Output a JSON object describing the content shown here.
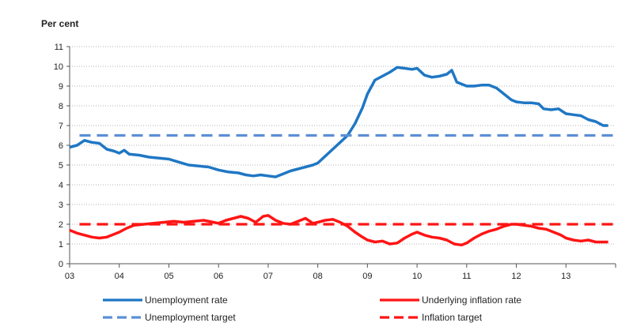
{
  "chart_data": {
    "type": "line",
    "ylabel": "Per cent",
    "ylim": [
      0,
      11
    ],
    "y_ticks": [
      0,
      1,
      2,
      3,
      4,
      5,
      6,
      7,
      8,
      9,
      10,
      11
    ],
    "xlim": [
      2003,
      2014
    ],
    "x_tick_labels": [
      "03",
      "04",
      "05",
      "06",
      "07",
      "08",
      "09",
      "10",
      "11",
      "12",
      "13"
    ],
    "grid": "horizontal-dotted",
    "legend_placement": "bottom",
    "series": [
      {
        "name": "Unemployment rate",
        "color": "#1f77c4",
        "style": "solid",
        "points": [
          [
            2003.0,
            5.9
          ],
          [
            2003.15,
            6.0
          ],
          [
            2003.3,
            6.25
          ],
          [
            2003.45,
            6.15
          ],
          [
            2003.6,
            6.1
          ],
          [
            2003.75,
            5.8
          ],
          [
            2003.9,
            5.7
          ],
          [
            2004.0,
            5.6
          ],
          [
            2004.1,
            5.75
          ],
          [
            2004.2,
            5.55
          ],
          [
            2004.4,
            5.5
          ],
          [
            2004.6,
            5.4
          ],
          [
            2004.8,
            5.35
          ],
          [
            2005.0,
            5.3
          ],
          [
            2005.2,
            5.15
          ],
          [
            2005.4,
            5.0
          ],
          [
            2005.6,
            4.95
          ],
          [
            2005.8,
            4.9
          ],
          [
            2006.0,
            4.75
          ],
          [
            2006.2,
            4.65
          ],
          [
            2006.4,
            4.6
          ],
          [
            2006.55,
            4.5
          ],
          [
            2006.7,
            4.45
          ],
          [
            2006.85,
            4.5
          ],
          [
            2007.0,
            4.45
          ],
          [
            2007.15,
            4.4
          ],
          [
            2007.3,
            4.55
          ],
          [
            2007.45,
            4.7
          ],
          [
            2007.6,
            4.8
          ],
          [
            2007.75,
            4.9
          ],
          [
            2007.9,
            5.0
          ],
          [
            2008.0,
            5.1
          ],
          [
            2008.15,
            5.45
          ],
          [
            2008.3,
            5.8
          ],
          [
            2008.45,
            6.15
          ],
          [
            2008.6,
            6.5
          ],
          [
            2008.75,
            7.1
          ],
          [
            2008.9,
            7.9
          ],
          [
            2009.0,
            8.6
          ],
          [
            2009.15,
            9.3
          ],
          [
            2009.3,
            9.5
          ],
          [
            2009.45,
            9.7
          ],
          [
            2009.6,
            9.95
          ],
          [
            2009.75,
            9.9
          ],
          [
            2009.9,
            9.85
          ],
          [
            2010.0,
            9.9
          ],
          [
            2010.15,
            9.55
          ],
          [
            2010.3,
            9.45
          ],
          [
            2010.45,
            9.5
          ],
          [
            2010.6,
            9.6
          ],
          [
            2010.7,
            9.8
          ],
          [
            2010.8,
            9.2
          ],
          [
            2011.0,
            9.0
          ],
          [
            2011.15,
            9.0
          ],
          [
            2011.3,
            9.05
          ],
          [
            2011.45,
            9.05
          ],
          [
            2011.6,
            8.9
          ],
          [
            2011.75,
            8.6
          ],
          [
            2011.9,
            8.3
          ],
          [
            2012.0,
            8.2
          ],
          [
            2012.15,
            8.15
          ],
          [
            2012.3,
            8.15
          ],
          [
            2012.45,
            8.1
          ],
          [
            2012.55,
            7.85
          ],
          [
            2012.7,
            7.8
          ],
          [
            2012.85,
            7.85
          ],
          [
            2013.0,
            7.6
          ],
          [
            2013.15,
            7.55
          ],
          [
            2013.3,
            7.5
          ],
          [
            2013.45,
            7.3
          ],
          [
            2013.6,
            7.2
          ],
          [
            2013.75,
            7.0
          ],
          [
            2013.85,
            7.0
          ]
        ]
      },
      {
        "name": "Underlying inflation rate",
        "color": "#ff1414",
        "style": "solid",
        "points": [
          [
            2003.0,
            1.7
          ],
          [
            2003.15,
            1.55
          ],
          [
            2003.3,
            1.45
          ],
          [
            2003.45,
            1.35
          ],
          [
            2003.6,
            1.3
          ],
          [
            2003.75,
            1.35
          ],
          [
            2003.9,
            1.5
          ],
          [
            2004.0,
            1.6
          ],
          [
            2004.15,
            1.8
          ],
          [
            2004.3,
            1.95
          ],
          [
            2004.5,
            2.0
          ],
          [
            2004.7,
            2.05
          ],
          [
            2004.9,
            2.1
          ],
          [
            2005.1,
            2.15
          ],
          [
            2005.3,
            2.1
          ],
          [
            2005.5,
            2.15
          ],
          [
            2005.7,
            2.2
          ],
          [
            2005.9,
            2.1
          ],
          [
            2006.0,
            2.05
          ],
          [
            2006.15,
            2.2
          ],
          [
            2006.3,
            2.3
          ],
          [
            2006.45,
            2.4
          ],
          [
            2006.6,
            2.3
          ],
          [
            2006.75,
            2.1
          ],
          [
            2006.9,
            2.4
          ],
          [
            2007.0,
            2.45
          ],
          [
            2007.15,
            2.2
          ],
          [
            2007.3,
            2.05
          ],
          [
            2007.45,
            2.0
          ],
          [
            2007.6,
            2.15
          ],
          [
            2007.75,
            2.3
          ],
          [
            2007.9,
            2.05
          ],
          [
            2008.0,
            2.1
          ],
          [
            2008.15,
            2.2
          ],
          [
            2008.3,
            2.25
          ],
          [
            2008.45,
            2.1
          ],
          [
            2008.6,
            1.9
          ],
          [
            2008.75,
            1.6
          ],
          [
            2008.9,
            1.35
          ],
          [
            2009.0,
            1.2
          ],
          [
            2009.15,
            1.1
          ],
          [
            2009.3,
            1.15
          ],
          [
            2009.45,
            1.0
          ],
          [
            2009.6,
            1.05
          ],
          [
            2009.75,
            1.3
          ],
          [
            2009.9,
            1.5
          ],
          [
            2010.0,
            1.6
          ],
          [
            2010.15,
            1.45
          ],
          [
            2010.3,
            1.35
          ],
          [
            2010.45,
            1.3
          ],
          [
            2010.6,
            1.2
          ],
          [
            2010.75,
            1.0
          ],
          [
            2010.9,
            0.95
          ],
          [
            2011.0,
            1.05
          ],
          [
            2011.15,
            1.3
          ],
          [
            2011.3,
            1.5
          ],
          [
            2011.45,
            1.65
          ],
          [
            2011.6,
            1.75
          ],
          [
            2011.75,
            1.9
          ],
          [
            2011.9,
            2.0
          ],
          [
            2012.0,
            2.0
          ],
          [
            2012.15,
            1.95
          ],
          [
            2012.3,
            1.9
          ],
          [
            2012.45,
            1.8
          ],
          [
            2012.6,
            1.75
          ],
          [
            2012.75,
            1.6
          ],
          [
            2012.9,
            1.45
          ],
          [
            2013.0,
            1.3
          ],
          [
            2013.15,
            1.2
          ],
          [
            2013.3,
            1.15
          ],
          [
            2013.45,
            1.2
          ],
          [
            2013.6,
            1.1
          ],
          [
            2013.75,
            1.1
          ],
          [
            2013.85,
            1.1
          ]
        ]
      },
      {
        "name": "Unemployment target",
        "color": "#5b8fd6",
        "style": "dashed",
        "points": [
          [
            2003.2,
            6.5
          ],
          [
            2013.95,
            6.5
          ]
        ]
      },
      {
        "name": "Inflation target",
        "color": "#ff1414",
        "style": "dashed",
        "points": [
          [
            2003.2,
            2.0
          ],
          [
            2013.95,
            2.0
          ]
        ]
      }
    ]
  }
}
